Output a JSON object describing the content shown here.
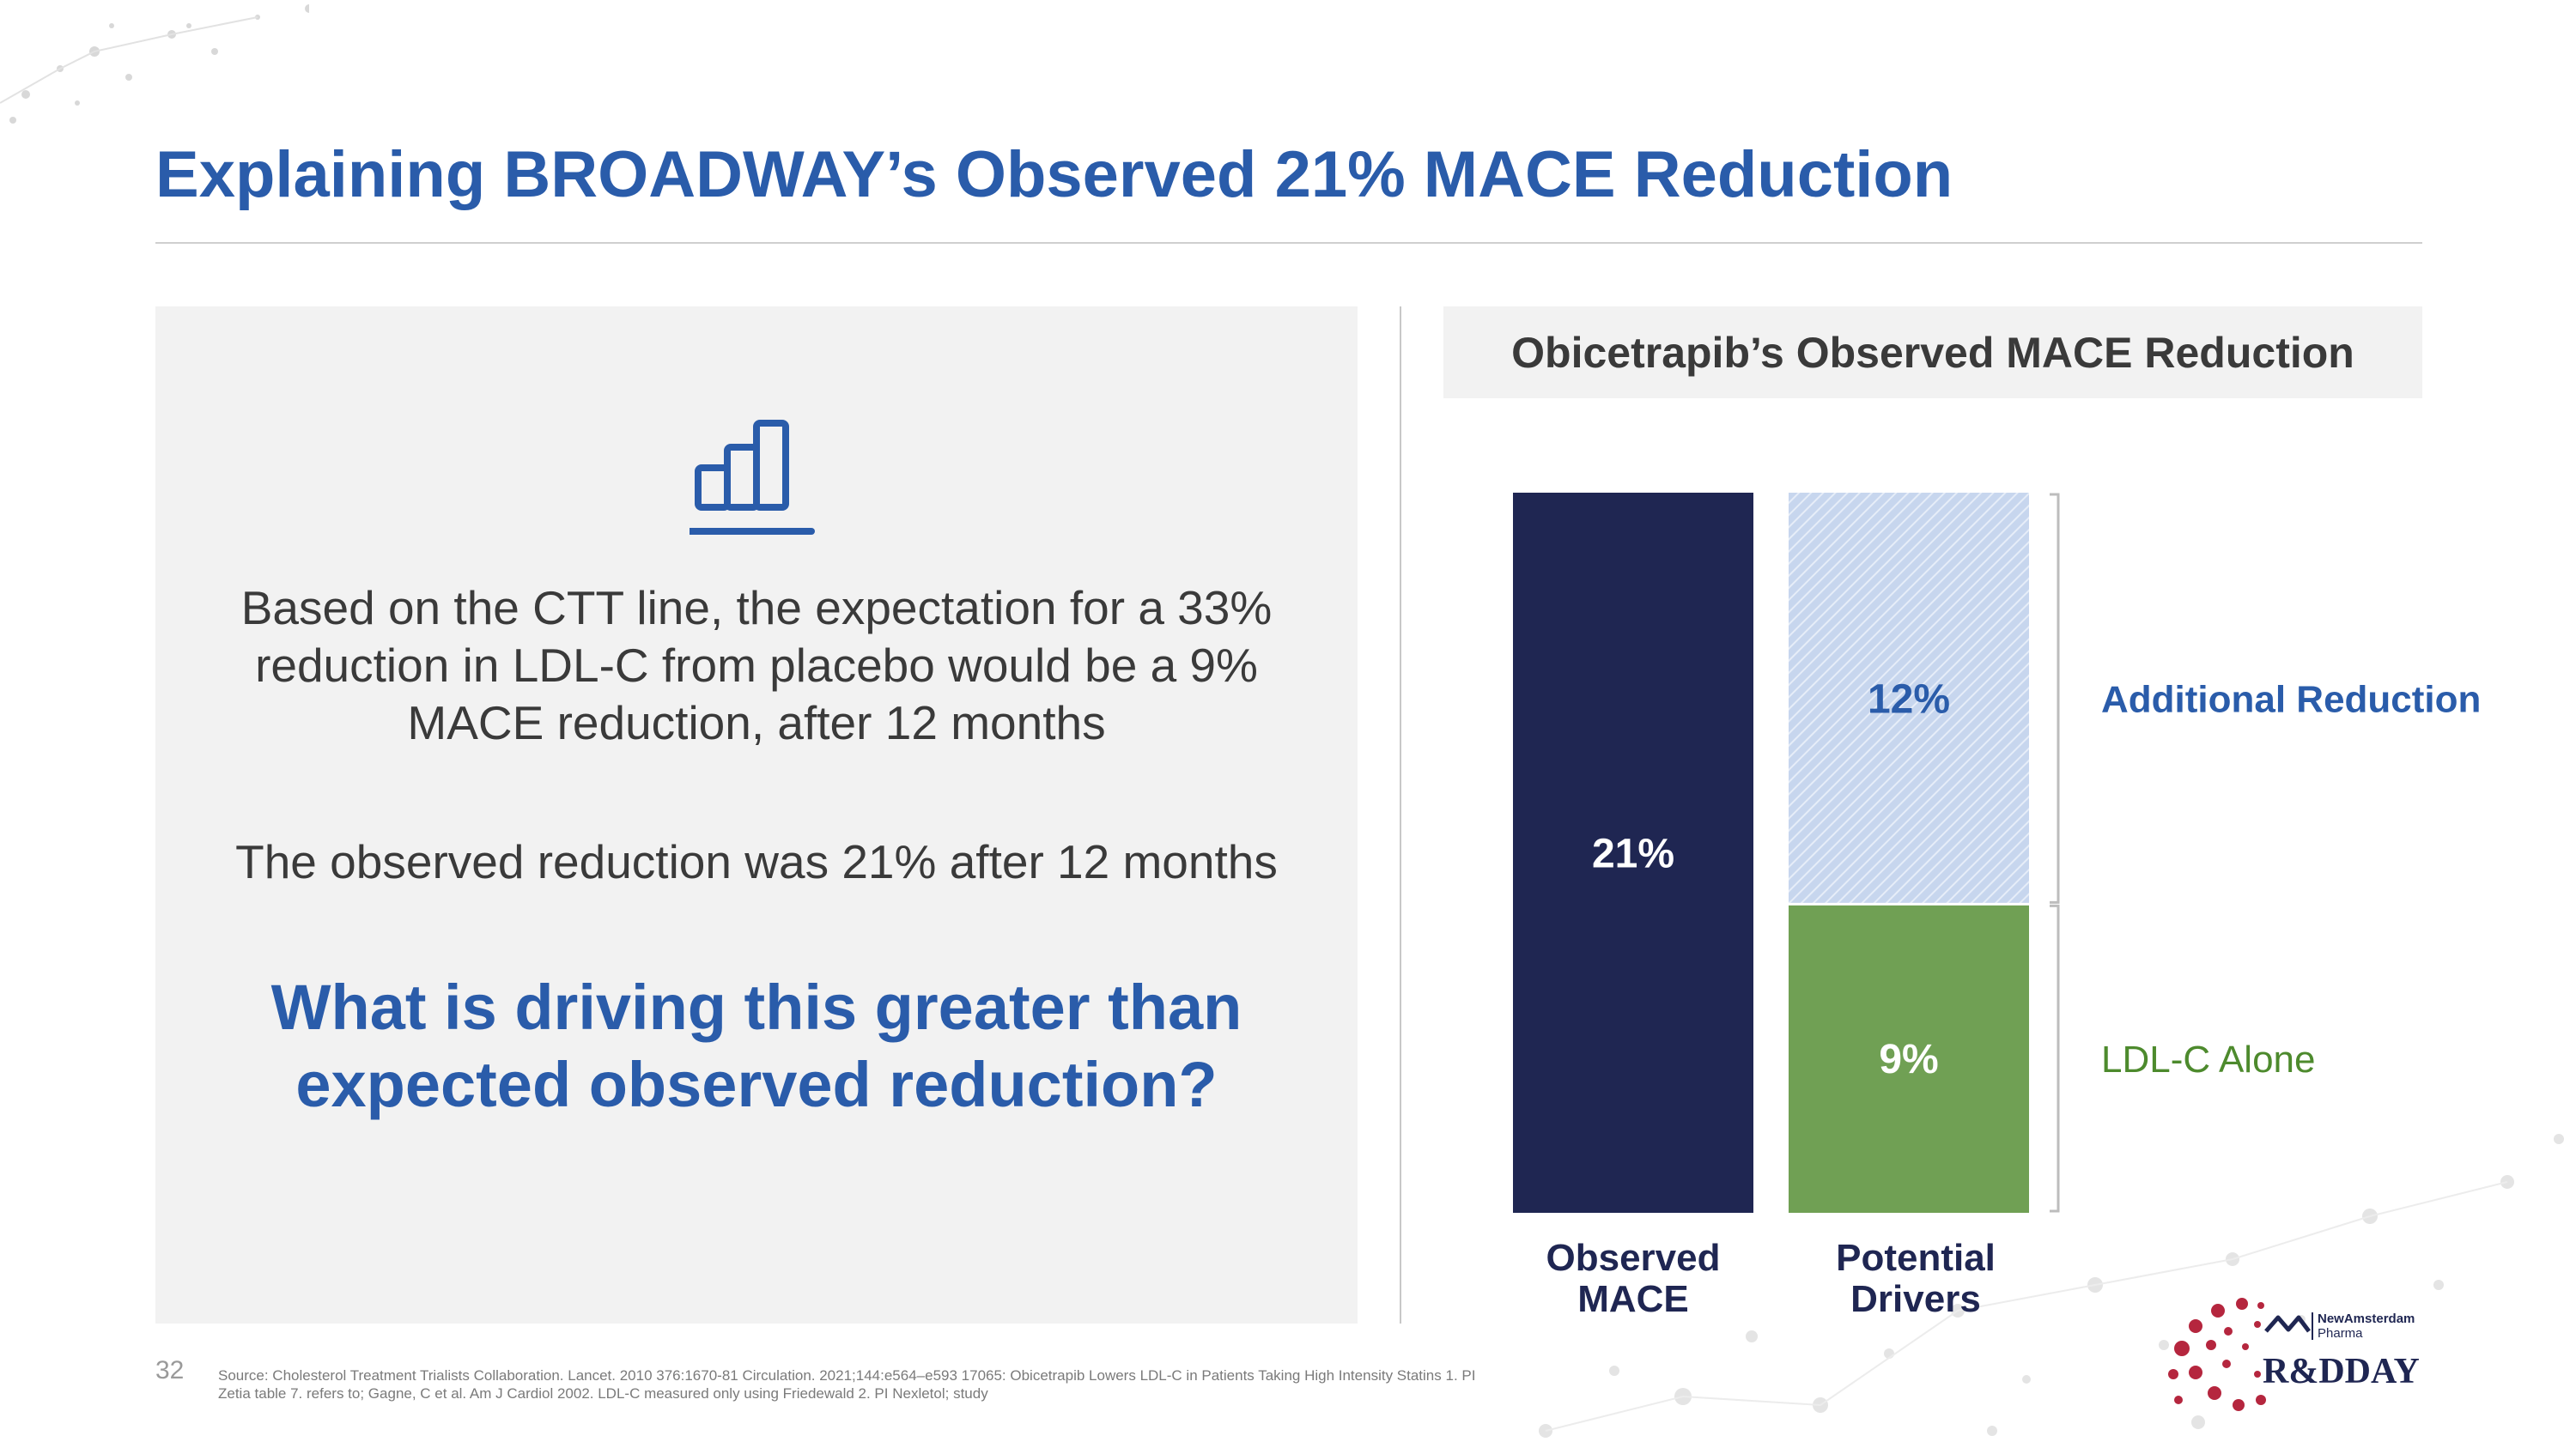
{
  "page": {
    "title": "Explaining BROADWAY’s Observed 21% MACE Reduction",
    "page_number": "32",
    "source": "Source: Cholesterol Treatment Trialists Collaboration. Lancet. 2010 376:1670-81 Circulation. 2021;144:e564–e593 17065: Obicetrapib Lowers LDL-C in Patients Taking High Intensity Statins 1. PI Zetia table 7. refers to; Gagne, C et al. Am J Cardiol 2002. LDL-C measured only using Friedewald 2. PI Nexletol; study"
  },
  "left_panel": {
    "icon": "bar-chart-icon",
    "paragraph1": "Based on the CTT line, the expectation for a 33% reduction in LDL-C from placebo would be a 9% MACE reduction, after 12 months",
    "paragraph2": "The observed reduction was 21% after 12 months",
    "question": "What is driving this greater than expected observed reduction?"
  },
  "logo": {
    "company_line1": "NewAmsterdam",
    "company_line2": "Pharma",
    "event": "R&DDAY"
  },
  "colors": {
    "title_blue": "#2a5caa",
    "observed_navy": "#1f2652",
    "additional_light_blue": "#c7d6ee",
    "ldl_green": "#70a054",
    "logo_red": "#b5263e"
  },
  "chart_data": {
    "type": "bar",
    "stacked": true,
    "title": "Obicetrapib’s Observed MACE Reduction",
    "categories": [
      "Observed MACE",
      "Potential Drivers"
    ],
    "category_lines": [
      [
        "Observed",
        "MACE"
      ],
      [
        "Potential",
        "Drivers"
      ]
    ],
    "series": [
      {
        "name": "Observed MACE",
        "values": [
          21,
          null
        ],
        "label": "21%",
        "color": "#1f2652"
      },
      {
        "name": "LDL-C Alone",
        "values": [
          null,
          9
        ],
        "label": "9%",
        "color": "#70a054"
      },
      {
        "name": "Additional Reduction",
        "values": [
          null,
          12
        ],
        "label": "12%",
        "color": "#c7d6ee",
        "pattern": "diagonal-hatch"
      }
    ],
    "annotations": [
      {
        "text": "Additional Reduction",
        "series": "Additional Reduction",
        "color": "#2a5caa",
        "bold": true
      },
      {
        "text": "LDL-C Alone",
        "series": "LDL-C Alone",
        "color": "#4d8a2d",
        "bold": false
      }
    ],
    "ylim": [
      0,
      21
    ],
    "grid": false,
    "legend": "none"
  }
}
